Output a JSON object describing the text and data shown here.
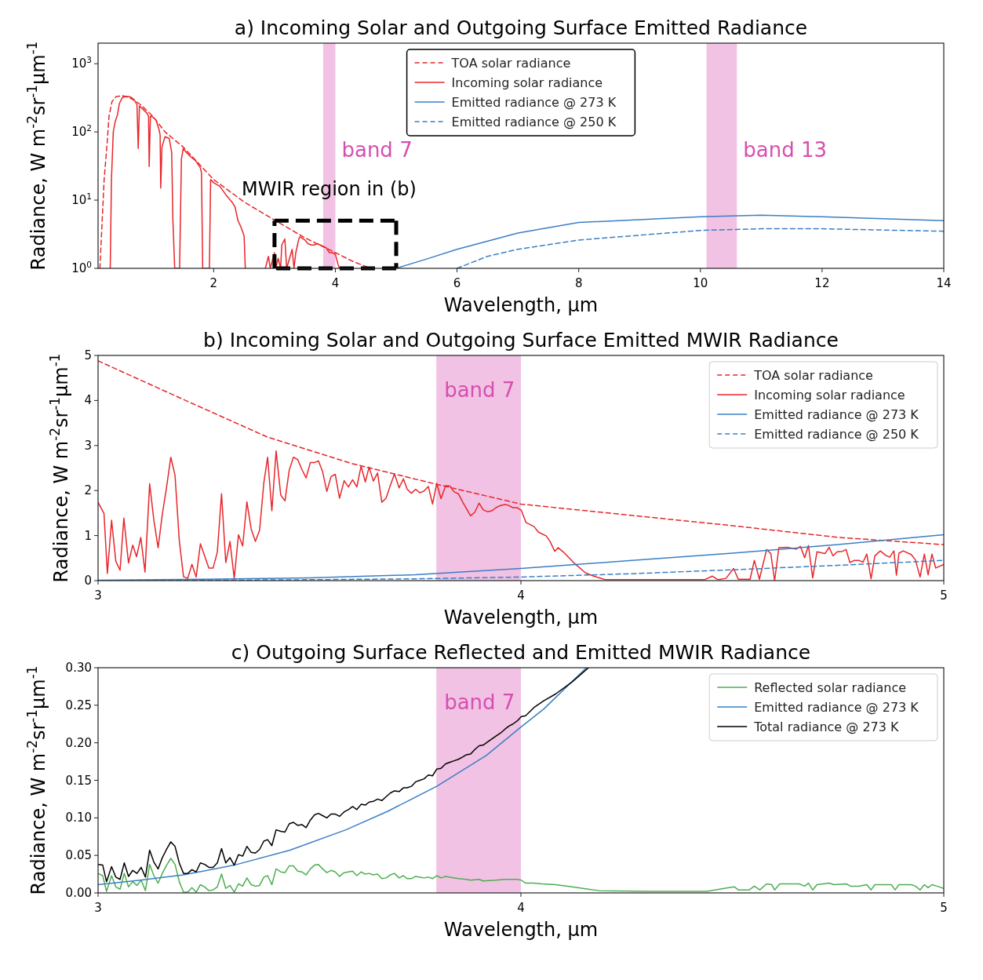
{
  "chart_data": [
    {
      "type": "line",
      "title": "a) Incoming Solar and Outgoing Surface Emitted Radiance",
      "xlabel": "Wavelength, µm",
      "ylabel": "Radiance, W m$^{-2}$sr$^{-1}$µm$^{-1}$",
      "xlim": [
        0.1,
        14
      ],
      "ylim": [
        1,
        2000
      ],
      "log": "y",
      "xticks": [
        2,
        4,
        6,
        8,
        10,
        12,
        14
      ],
      "yticks": [
        {
          "value": 1,
          "label": "10$^{0}$"
        },
        {
          "value": 10,
          "label": "10$^{1}$"
        },
        {
          "value": 100,
          "label": "10$^{2}$"
        },
        {
          "value": 1000,
          "label": "10$^{3}$"
        }
      ],
      "legend": "top",
      "marker": "none",
      "bands": [
        {
          "axis": "x",
          "from": 3.8,
          "to": 4.0,
          "label": "band 7",
          "color": "#d64fb0"
        },
        {
          "axis": "x",
          "from": 10.1,
          "to": 10.6,
          "label": "band 13",
          "color": "#d64fb0"
        }
      ],
      "annotations": [
        {
          "text": "MWIR region in (b)",
          "x": 4,
          "y": 5
        }
      ],
      "series": [
        {
          "name": "TOA solar radiance",
          "color": "#e8262a",
          "line_style": "dashed",
          "x": [
            0.13,
            0.2,
            0.25,
            0.28,
            0.33,
            0.4,
            0.5,
            0.6,
            0.7,
            0.8,
            1.0,
            1.2,
            1.5,
            2.0,
            2.5,
            3.0,
            3.5,
            4.0,
            4.3,
            4.58
          ],
          "values": [
            1,
            20,
            70,
            170,
            280,
            330,
            340,
            320,
            290,
            250,
            170,
            100,
            60,
            20,
            9.4,
            5.1,
            2.8,
            1.7,
            1.25,
            1.0
          ]
        },
        {
          "name": "Incoming solar radiance",
          "color": "#e8262a",
          "line_style": "solid",
          "x": [
            0.3,
            0.32,
            0.35,
            0.38,
            0.42,
            0.45,
            0.5,
            0.55,
            0.6,
            0.65,
            0.7,
            0.74,
            0.76,
            0.78,
            0.85,
            0.9,
            0.93,
            0.94,
            0.96,
            1.0,
            1.05,
            1.1,
            1.12,
            1.13,
            1.15,
            1.2,
            1.27,
            1.31,
            1.33,
            1.36,
            1.44,
            1.47,
            1.5,
            1.55,
            1.6,
            1.7,
            1.78,
            1.8,
            1.82,
            1.93,
            1.95,
            2.0,
            2.1,
            2.2,
            2.3,
            2.35,
            2.4,
            2.45,
            2.5,
            2.52,
            2.7,
            2.85,
            2.9,
            2.93,
            3.0,
            3.02,
            3.06,
            3.1,
            3.12,
            3.17,
            3.2,
            3.29,
            3.32,
            3.35,
            3.4,
            3.42,
            3.5,
            3.55,
            3.6,
            3.65,
            3.7,
            3.8,
            3.85,
            3.9,
            3.95,
            4.0,
            4.05,
            4.07
          ],
          "values": [
            1,
            20,
            100,
            140,
            180,
            260,
            320,
            330,
            330,
            320,
            290,
            250,
            57,
            240,
            210,
            190,
            170,
            31,
            170,
            165,
            150,
            110,
            90,
            15,
            60,
            85,
            80,
            50,
            5,
            1,
            1,
            40,
            57,
            50,
            45,
            38,
            30,
            25,
            1,
            1,
            20,
            18,
            16,
            12,
            9.4,
            8,
            5,
            4,
            3,
            1,
            null,
            1,
            1.5,
            1,
            1.7,
            1,
            1.4,
            1,
            2.2,
            2.7,
            1,
            1.9,
            1,
            1.7,
            2.7,
            2.9,
            2.6,
            2.3,
            2.2,
            2.2,
            2.3,
            2.1,
            2.0,
            1.7,
            1.7,
            1.6,
            1.1,
            1
          ]
        },
        {
          "name": "Emitted radiance @ 273 K",
          "color": "#3a7fc4",
          "line_style": "solid",
          "x": [
            5.0,
            5.5,
            6,
            7,
            8,
            10,
            11,
            12,
            14
          ],
          "values": [
            1.0,
            1.37,
            1.9,
            3.3,
            4.7,
            5.7,
            6.0,
            5.7,
            5.0
          ]
        },
        {
          "name": "Emitted radiance @ 250 K",
          "color": "#3a7fc4",
          "line_style": "dashed",
          "x": [
            6.0,
            6.5,
            7,
            8,
            10,
            11,
            12,
            14
          ],
          "values": [
            1.0,
            1.5,
            1.9,
            2.6,
            3.6,
            3.8,
            3.8,
            3.5
          ]
        }
      ]
    },
    {
      "type": "line",
      "title": "b) Incoming Solar and Outgoing Surface Emitted MWIR Radiance",
      "xlabel": "Wavelength, µm",
      "ylabel": "Radiance, W m$^{-2}$sr$^{-1}$µm$^{-1}$",
      "xlim": [
        3,
        5
      ],
      "ylim": [
        0,
        5
      ],
      "xticks": [
        3,
        4,
        5
      ],
      "yticks": [
        0,
        1,
        2,
        3,
        4,
        5
      ],
      "legend": "top right",
      "marker": "none",
      "bands": [
        {
          "axis": "x",
          "from": 3.8,
          "to": 4.0,
          "label": "band 7",
          "color": "#d64fb0"
        }
      ],
      "series": [
        {
          "name": "TOA solar radiance",
          "color": "#e8262a",
          "line_style": "dashed",
          "x": [
            3.0,
            3.2,
            3.4,
            3.6,
            3.8,
            4.0,
            4.25,
            4.5,
            4.75,
            5.0
          ],
          "values": [
            4.88,
            4.03,
            3.19,
            2.6,
            2.14,
            1.7,
            1.46,
            1.22,
            0.96,
            0.8
          ]
        },
        {
          "name": "Incoming solar radiance",
          "color": "#e8262a",
          "line_style": "solid",
          "x": [
            3.0,
            3.014,
            3.022,
            3.032,
            3.042,
            3.052,
            3.061,
            3.072,
            3.082,
            3.091,
            3.101,
            3.111,
            3.122,
            3.132,
            3.142,
            3.152,
            3.161,
            3.172,
            3.182,
            3.192,
            3.202,
            3.212,
            3.222,
            3.232,
            3.242,
            3.252,
            3.262,
            3.272,
            3.282,
            3.292,
            3.302,
            3.312,
            3.322,
            3.332,
            3.342,
            3.352,
            3.362,
            3.372,
            3.382,
            3.392,
            3.401,
            3.411,
            3.421,
            3.432,
            3.442,
            3.452,
            3.462,
            3.472,
            3.482,
            3.492,
            3.502,
            3.512,
            3.521,
            3.531,
            3.541,
            3.551,
            3.561,
            3.571,
            3.582,
            3.592,
            3.602,
            3.612,
            3.622,
            3.632,
            3.641,
            3.651,
            3.661,
            3.671,
            3.681,
            3.691,
            3.701,
            3.712,
            3.722,
            3.731,
            3.741,
            3.751,
            3.761,
            3.771,
            3.781,
            3.791,
            3.801,
            3.811,
            3.822,
            3.832,
            3.842,
            3.852,
            3.862,
            3.871,
            3.881,
            3.891,
            3.901,
            3.911,
            3.921,
            3.931,
            3.941,
            3.952,
            3.962,
            3.971,
            3.981,
            3.991,
            4.001,
            4.012,
            4.031,
            4.041,
            4.06,
            4.069,
            4.08,
            4.088,
            4.101,
            4.127,
            4.153,
            4.172,
            4.2,
            4.3,
            4.434,
            4.453,
            4.466,
            4.485,
            4.503,
            4.514,
            4.542,
            4.552,
            4.564,
            4.581,
            4.591,
            4.6,
            4.61,
            4.629,
            4.651,
            4.661,
            4.671,
            4.68,
            4.69,
            4.7,
            4.719,
            4.729,
            4.738,
            4.748,
            4.76,
            4.769,
            4.778,
            4.789,
            4.799,
            4.809,
            4.818,
            4.828,
            4.837,
            4.85,
            4.863,
            4.872,
            4.882,
            4.888,
            4.894,
            4.904,
            4.923,
            4.933,
            4.944,
            4.954,
            4.963,
            4.972,
            4.981,
            5.0
          ],
          "values": [
            1.74,
            1.49,
            0.16,
            1.34,
            0.43,
            0.23,
            1.39,
            0.39,
            0.79,
            0.53,
            0.96,
            0.19,
            2.15,
            1.34,
            0.73,
            1.48,
            2.01,
            2.74,
            2.34,
            0.9,
            0.09,
            0.05,
            0.36,
            0.08,
            0.82,
            0.55,
            0.28,
            0.28,
            0.63,
            1.93,
            0.4,
            0.87,
            0.05,
            1.02,
            0.77,
            1.75,
            1.15,
            0.87,
            1.12,
            2.17,
            2.74,
            1.55,
            2.88,
            1.9,
            1.77,
            2.45,
            2.74,
            2.69,
            2.47,
            2.28,
            2.62,
            2.62,
            2.66,
            2.42,
            1.98,
            2.31,
            2.36,
            1.83,
            2.22,
            2.08,
            2.24,
            2.08,
            2.54,
            2.19,
            2.52,
            2.21,
            2.39,
            1.74,
            1.83,
            2.11,
            2.37,
            2.06,
            2.26,
            2.03,
            1.94,
            2.03,
            1.95,
            1.99,
            2.09,
            1.7,
            2.16,
            1.82,
            2.11,
            2.1,
            1.97,
            1.93,
            1.75,
            1.6,
            1.44,
            1.52,
            1.72,
            1.57,
            1.53,
            1.55,
            1.62,
            1.67,
            1.69,
            1.67,
            1.62,
            1.62,
            1.56,
            1.29,
            1.2,
            1.08,
            0.99,
            0.87,
            0.65,
            0.73,
            0.63,
            0.38,
            0.17,
            0.1,
            0.02,
            0.02,
            0.02,
            0.1,
            0.02,
            0.05,
            0.27,
            0.03,
            0.03,
            0.45,
            0.03,
            0.69,
            0.6,
            0.0,
            0.73,
            0.74,
            0.7,
            0.76,
            0.51,
            0.78,
            0.06,
            0.64,
            0.6,
            0.74,
            0.55,
            0.64,
            0.65,
            0.69,
            0.4,
            0.45,
            0.45,
            0.41,
            0.59,
            0.04,
            0.55,
            0.66,
            0.56,
            0.52,
            0.66,
            0.12,
            0.61,
            0.66,
            0.58,
            0.46,
            0.08,
            0.59,
            0.13,
            0.59,
            0.28,
            0.36
          ]
        },
        {
          "name": "Emitted radiance @ 273 K",
          "color": "#3a7fc4",
          "line_style": "solid",
          "x": [
            3.0,
            3.25,
            3.5,
            3.75,
            4.0,
            4.25,
            4.5,
            4.75,
            5.0
          ],
          "values": [
            0.01,
            0.03,
            0.06,
            0.13,
            0.27,
            0.44,
            0.61,
            0.8,
            1.02
          ]
        },
        {
          "name": "Emitted radiance @ 250 K",
          "color": "#3a7fc4",
          "line_style": "dashed",
          "x": [
            3.0,
            3.25,
            3.5,
            3.75,
            4.0,
            4.25,
            4.5,
            4.75,
            5.0
          ],
          "values": [
            0.0,
            0.01,
            0.02,
            0.04,
            0.08,
            0.15,
            0.24,
            0.34,
            0.45
          ]
        }
      ]
    },
    {
      "type": "line",
      "title": "c) Outgoing Surface Reflected and Emitted MWIR Radiance",
      "xlabel": "Wavelength, µm",
      "ylabel": "Radiance, W m$^{-2}$sr$^{-1}$µm$^{-1}$",
      "xlim": [
        3,
        5
      ],
      "ylim": [
        0,
        0.3
      ],
      "xticks": [
        3,
        4,
        5
      ],
      "yticks": [
        {
          "value": 0,
          "label": "0.00"
        },
        {
          "value": 0.05,
          "label": "0.05"
        },
        {
          "value": 0.1,
          "label": "0.10"
        },
        {
          "value": 0.15,
          "label": "0.15"
        },
        {
          "value": 0.2,
          "label": "0.20"
        },
        {
          "value": 0.25,
          "label": "0.25"
        },
        {
          "value": 0.3,
          "label": "0.30"
        }
      ],
      "legend": "top right",
      "marker": "none",
      "bands": [
        {
          "axis": "x",
          "from": 3.8,
          "to": 4.0,
          "label": "band 7",
          "color": "#d64fb0"
        }
      ],
      "series": [
        {
          "name": "Reflected solar radiance",
          "color": "#4caf50",
          "line_style": "solid",
          "x": [
            3.0,
            3.011,
            3.02,
            3.032,
            3.042,
            3.052,
            3.062,
            3.072,
            3.082,
            3.092,
            3.102,
            3.112,
            3.122,
            3.132,
            3.142,
            3.152,
            3.161,
            3.172,
            3.182,
            3.192,
            3.202,
            3.212,
            3.222,
            3.232,
            3.242,
            3.252,
            3.262,
            3.272,
            3.282,
            3.292,
            3.302,
            3.312,
            3.322,
            3.332,
            3.342,
            3.352,
            3.362,
            3.372,
            3.382,
            3.392,
            3.401,
            3.411,
            3.421,
            3.432,
            3.442,
            3.452,
            3.462,
            3.472,
            3.482,
            3.492,
            3.502,
            3.512,
            3.521,
            3.531,
            3.541,
            3.551,
            3.561,
            3.571,
            3.582,
            3.592,
            3.602,
            3.612,
            3.622,
            3.632,
            3.641,
            3.651,
            3.661,
            3.671,
            3.681,
            3.691,
            3.701,
            3.712,
            3.722,
            3.731,
            3.741,
            3.751,
            3.761,
            3.771,
            3.781,
            3.791,
            3.801,
            3.811,
            3.822,
            3.832,
            3.852,
            3.871,
            3.881,
            3.901,
            3.911,
            3.941,
            3.962,
            3.991,
            4.001,
            4.011,
            4.03,
            4.05,
            4.082,
            4.121,
            4.159,
            4.185,
            4.3,
            4.44,
            4.492,
            4.505,
            4.514,
            4.54,
            4.552,
            4.565,
            4.581,
            4.593,
            4.6,
            4.612,
            4.658,
            4.671,
            4.68,
            4.69,
            4.7,
            4.729,
            4.74,
            4.769,
            4.78,
            4.799,
            4.818,
            4.828,
            4.837,
            4.876,
            4.885,
            4.894,
            4.923,
            4.933,
            4.944,
            4.954,
            4.963,
            4.972,
            4.984,
            5.0
          ],
          "values": [
            0.026,
            0.023,
            0.002,
            0.023,
            0.008,
            0.005,
            0.026,
            0.008,
            0.015,
            0.01,
            0.017,
            0.003,
            0.038,
            0.023,
            0.013,
            0.026,
            0.036,
            0.046,
            0.038,
            0.015,
            0.001,
            0.001,
            0.007,
            0.001,
            0.011,
            0.008,
            0.003,
            0.004,
            0.008,
            0.025,
            0.006,
            0.01,
            0.001,
            0.012,
            0.009,
            0.02,
            0.011,
            0.009,
            0.01,
            0.021,
            0.023,
            0.011,
            0.032,
            0.028,
            0.027,
            0.036,
            0.036,
            0.029,
            0.028,
            0.024,
            0.032,
            0.037,
            0.038,
            0.032,
            0.027,
            0.03,
            0.028,
            0.022,
            0.027,
            0.028,
            0.029,
            0.023,
            0.028,
            0.025,
            0.026,
            0.024,
            0.025,
            0.019,
            0.02,
            0.024,
            0.026,
            0.02,
            0.023,
            0.019,
            0.019,
            0.022,
            0.021,
            0.02,
            0.021,
            0.019,
            0.023,
            0.02,
            0.022,
            0.021,
            0.019,
            0.018,
            0.017,
            0.018,
            0.016,
            0.017,
            0.018,
            0.018,
            0.017,
            0.013,
            0.013,
            0.012,
            0.011,
            0.008,
            0.005,
            0.003,
            0.002,
            0.002,
            0.007,
            0.008,
            0.004,
            0.004,
            0.009,
            0.004,
            0.012,
            0.011,
            0.004,
            0.012,
            0.012,
            0.009,
            0.013,
            0.004,
            0.011,
            0.013,
            0.011,
            0.012,
            0.009,
            0.009,
            0.011,
            0.004,
            0.011,
            0.011,
            0.004,
            0.011,
            0.011,
            0.009,
            0.004,
            0.011,
            0.007,
            0.011,
            0.009,
            0.006
          ]
        },
        {
          "name": "Emitted radiance @ 273 K",
          "color": "#3a7fc4",
          "line_style": "solid",
          "x": [
            3.0,
            3.1,
            3.202,
            3.322,
            3.454,
            3.586,
            3.686,
            3.801,
            3.918,
            4.0,
            4.054,
            4.155
          ],
          "values": [
            0.011,
            0.017,
            0.024,
            0.037,
            0.057,
            0.084,
            0.109,
            0.142,
            0.183,
            0.221,
            0.245,
            0.3
          ]
        },
        {
          "name": "Total radiance @ 273 K",
          "color": "#000000",
          "line_style": "solid",
          "x": [
            3.0,
            3.011,
            3.02,
            3.032,
            3.042,
            3.052,
            3.062,
            3.072,
            3.082,
            3.092,
            3.102,
            3.112,
            3.122,
            3.132,
            3.142,
            3.152,
            3.161,
            3.172,
            3.182,
            3.192,
            3.202,
            3.212,
            3.222,
            3.232,
            3.242,
            3.252,
            3.262,
            3.272,
            3.282,
            3.292,
            3.302,
            3.312,
            3.322,
            3.332,
            3.342,
            3.352,
            3.362,
            3.372,
            3.382,
            3.392,
            3.401,
            3.411,
            3.421,
            3.432,
            3.442,
            3.452,
            3.462,
            3.472,
            3.482,
            3.492,
            3.502,
            3.512,
            3.521,
            3.531,
            3.541,
            3.551,
            3.561,
            3.571,
            3.582,
            3.592,
            3.602,
            3.612,
            3.622,
            3.632,
            3.641,
            3.651,
            3.661,
            3.671,
            3.681,
            3.691,
            3.701,
            3.712,
            3.722,
            3.731,
            3.741,
            3.751,
            3.761,
            3.771,
            3.781,
            3.791,
            3.801,
            3.811,
            3.822,
            3.832,
            3.842,
            3.852,
            3.862,
            3.871,
            3.881,
            3.891,
            3.901,
            3.911,
            3.921,
            3.931,
            3.941,
            3.952,
            3.962,
            3.971,
            3.981,
            3.991,
            4.001,
            4.011,
            4.031,
            4.054,
            4.082,
            4.121,
            4.16
          ],
          "values": [
            0.038,
            0.037,
            0.015,
            0.035,
            0.021,
            0.018,
            0.04,
            0.022,
            0.03,
            0.026,
            0.034,
            0.021,
            0.057,
            0.041,
            0.032,
            0.047,
            0.057,
            0.068,
            0.062,
            0.04,
            0.026,
            0.026,
            0.031,
            0.028,
            0.04,
            0.038,
            0.034,
            0.034,
            0.04,
            0.059,
            0.04,
            0.047,
            0.037,
            0.051,
            0.049,
            0.062,
            0.054,
            0.053,
            0.058,
            0.069,
            0.071,
            0.063,
            0.084,
            0.082,
            0.081,
            0.092,
            0.094,
            0.09,
            0.091,
            0.087,
            0.097,
            0.104,
            0.106,
            0.103,
            0.1,
            0.105,
            0.105,
            0.102,
            0.108,
            0.111,
            0.115,
            0.111,
            0.118,
            0.117,
            0.121,
            0.122,
            0.125,
            0.123,
            0.128,
            0.133,
            0.136,
            0.135,
            0.14,
            0.14,
            0.142,
            0.148,
            0.15,
            0.152,
            0.157,
            0.156,
            0.165,
            0.166,
            0.172,
            0.174,
            0.176,
            0.178,
            0.181,
            0.184,
            0.185,
            0.191,
            0.196,
            0.197,
            0.201,
            0.205,
            0.209,
            0.213,
            0.218,
            0.222,
            0.225,
            0.229,
            0.235,
            0.236,
            0.247,
            0.256,
            0.265,
            0.281,
            0.3
          ]
        }
      ]
    }
  ]
}
